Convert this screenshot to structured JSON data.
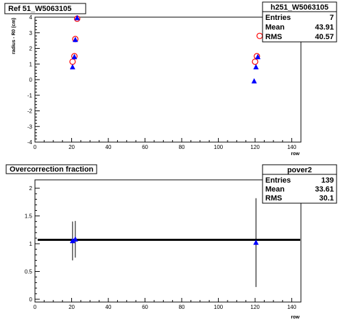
{
  "chart_data": [
    {
      "type": "scatter",
      "title": "Ref 51_W5063105",
      "xlabel": "row",
      "ylabel": "radius - R0 (cm)",
      "xlim": [
        0,
        145
      ],
      "ylim": [
        -4,
        4
      ],
      "xticks": [
        0,
        20,
        40,
        60,
        80,
        100,
        120,
        140
      ],
      "yticks": [
        -4,
        -3,
        -2,
        -1,
        0,
        1,
        2,
        3,
        4
      ],
      "grid": false,
      "stats": {
        "name": "h251_W5063105",
        "rows": [
          {
            "label": "Entries",
            "value": "7"
          },
          {
            "label": "Mean",
            "value": "43.91"
          },
          {
            "label": "RMS",
            "value": "40.57"
          }
        ]
      },
      "series": [
        {
          "marker": "open-circle",
          "color": "#ff0000",
          "x": [
            20.5,
            21.5,
            22,
            23,
            120,
            121,
            122.5
          ],
          "y": [
            1.15,
            1.5,
            2.6,
            3.9,
            1.15,
            1.5,
            2.8
          ]
        },
        {
          "marker": "filled-triangle",
          "color": "#0000ff",
          "x": [
            20.5,
            21.5,
            22,
            23,
            119.5,
            120.5,
            121.5
          ],
          "y": [
            0.8,
            1.45,
            2.55,
            3.95,
            -0.1,
            0.8,
            1.45
          ]
        }
      ]
    },
    {
      "type": "scatter",
      "title": "Overcorrection fraction",
      "xlabel": "row",
      "ylabel": "",
      "xlim": [
        0,
        145
      ],
      "ylim": [
        -0.05,
        2.15
      ],
      "xticks": [
        0,
        20,
        40,
        60,
        80,
        100,
        120,
        140
      ],
      "yticks": [
        0,
        0.5,
        1,
        1.5,
        2
      ],
      "yticklabels": [
        "0",
        "0.5",
        "1",
        "1.5",
        "2"
      ],
      "grid": false,
      "stats": {
        "name": "pover2",
        "rows": [
          {
            "label": "Entries",
            "value": "139"
          },
          {
            "label": "Mean",
            "value": "33.61"
          },
          {
            "label": "RMS",
            "value": "30.1"
          }
        ]
      },
      "reference_line": {
        "y": 1.07,
        "color": "#000000"
      },
      "series": [
        {
          "marker": "filled-triangle",
          "color": "#0000ff",
          "x": [
            20.5,
            22,
            120.5
          ],
          "y": [
            1.05,
            1.08,
            1.02
          ],
          "err_low": [
            0.35,
            0.33,
            0.8
          ],
          "err_high": [
            0.35,
            0.33,
            0.8
          ]
        }
      ]
    }
  ]
}
